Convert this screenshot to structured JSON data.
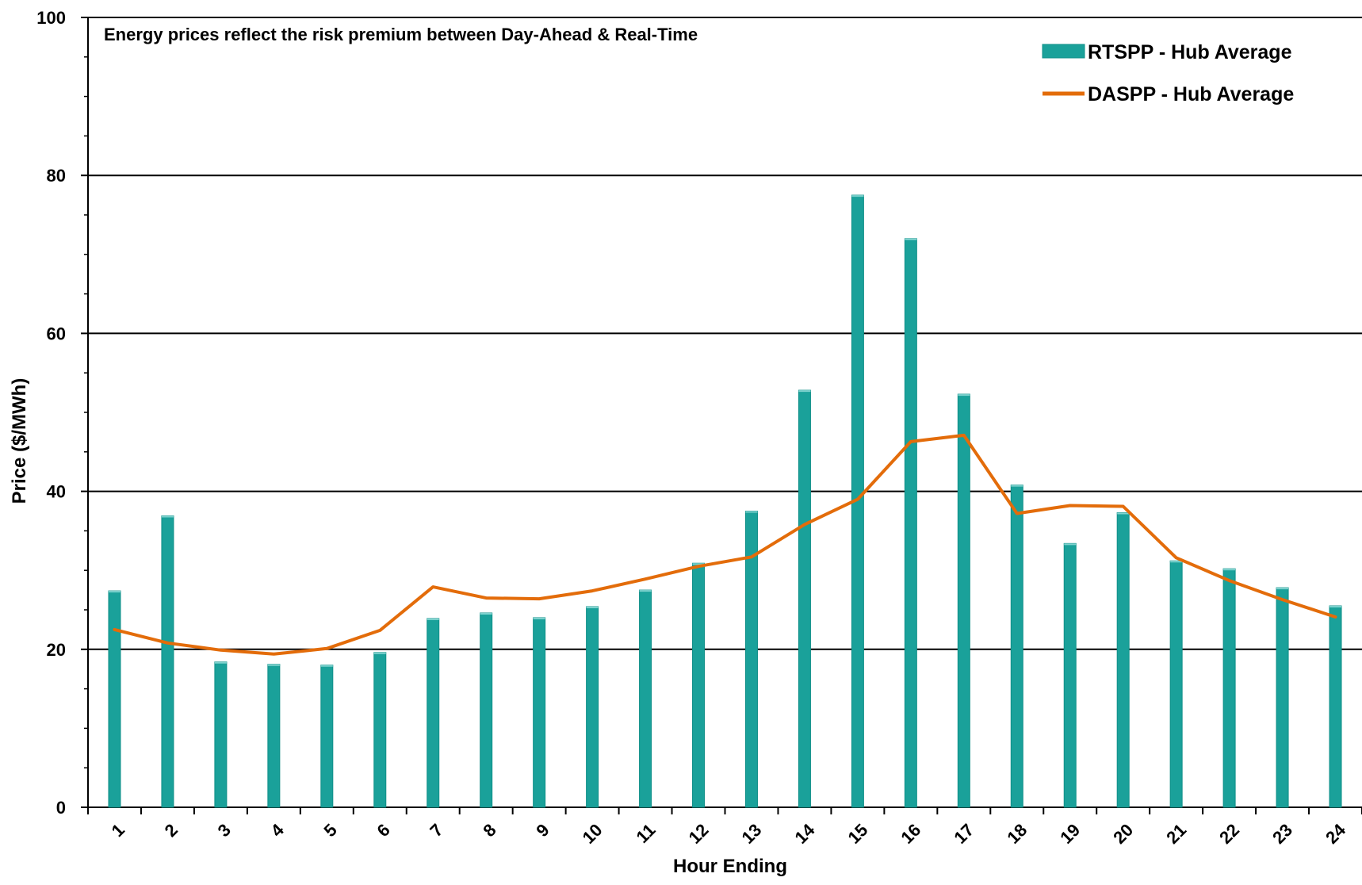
{
  "chart_data": {
    "type": "bar",
    "title": "Energy prices reflect the risk premium between Day-Ahead & Real-Time",
    "xlabel": "Hour Ending",
    "ylabel": "Price ($/MWh)",
    "ylim": [
      0,
      100
    ],
    "y_ticks": [
      0,
      20,
      40,
      60,
      80,
      100
    ],
    "y_minor_step": 5,
    "grid": true,
    "legend_position": "top-right",
    "categories": [
      "1",
      "2",
      "3",
      "4",
      "5",
      "6",
      "7",
      "8",
      "9",
      "10",
      "11",
      "12",
      "13",
      "14",
      "15",
      "16",
      "17",
      "18",
      "19",
      "20",
      "21",
      "22",
      "23",
      "24"
    ],
    "series": [
      {
        "name": "RTSPP - Hub Average",
        "kind": "bar",
        "color": "#1aa19a",
        "values": [
          27.4,
          36.9,
          18.4,
          18.1,
          18.0,
          19.6,
          23.9,
          24.6,
          24.0,
          25.4,
          27.5,
          30.9,
          37.5,
          52.8,
          77.5,
          72.0,
          52.3,
          40.8,
          33.4,
          37.3,
          31.2,
          30.2,
          27.8,
          25.5
        ]
      },
      {
        "name": "DASPP - Hub Average",
        "kind": "line",
        "color": "#e36c0a",
        "values": [
          22.5,
          20.8,
          19.9,
          19.4,
          20.1,
          22.4,
          27.9,
          26.5,
          26.4,
          27.4,
          28.9,
          30.5,
          31.7,
          35.8,
          39.0,
          46.3,
          47.1,
          37.2,
          38.2,
          38.1,
          31.6,
          28.7,
          26.3,
          24.1
        ]
      }
    ]
  }
}
